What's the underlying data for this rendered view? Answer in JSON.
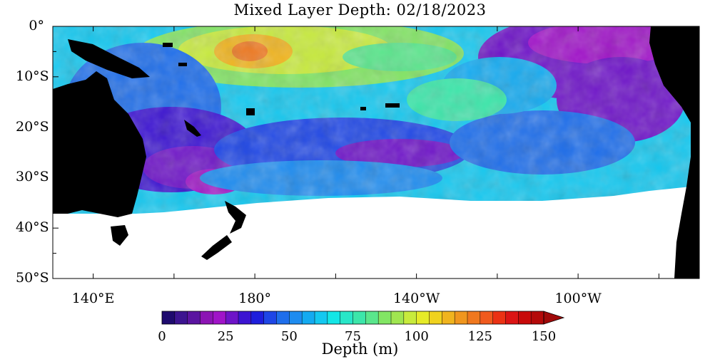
{
  "title": "Mixed Layer Depth: 02/18/2023",
  "map": {
    "lon_range": [
      130,
      290
    ],
    "lat_range": [
      -50,
      0
    ],
    "lat_ticks": [
      {
        "value": 0,
        "label": "0°"
      },
      {
        "value": -10,
        "label": "10°S"
      },
      {
        "value": -20,
        "label": "20°S"
      },
      {
        "value": -30,
        "label": "30°S"
      },
      {
        "value": -40,
        "label": "40°S"
      },
      {
        "value": -50,
        "label": "50°S"
      }
    ],
    "lon_ticks": [
      {
        "value": 140,
        "label": "140°E"
      },
      {
        "value": 180,
        "label": "180°"
      },
      {
        "value": 220,
        "label": "140°W"
      },
      {
        "value": 260,
        "label": "100°W"
      }
    ],
    "land_color": "#000000",
    "no_data_color": "#ffffff"
  },
  "colorbar": {
    "title": "Depth (m)",
    "min": 0,
    "max": 150,
    "ticks": [
      {
        "value": 0,
        "label": "0"
      },
      {
        "value": 25,
        "label": "25"
      },
      {
        "value": 50,
        "label": "50"
      },
      {
        "value": 75,
        "label": "75"
      },
      {
        "value": 100,
        "label": "100"
      },
      {
        "value": 125,
        "label": "125"
      },
      {
        "value": 150,
        "label": "150"
      }
    ],
    "colors": [
      "#1e0a6e",
      "#3c1490",
      "#5a14a0",
      "#8c14b4",
      "#a014c8",
      "#6e14c8",
      "#3c14d2",
      "#1e1edc",
      "#1e46e6",
      "#1e6eeb",
      "#1e8cf0",
      "#14aaf0",
      "#14c8f0",
      "#14e6e6",
      "#28e6c8",
      "#3ce6aa",
      "#5ae68c",
      "#82e664",
      "#a0e650",
      "#c8eb3c",
      "#e6eb28",
      "#f0d21e",
      "#f0b41e",
      "#f0961e",
      "#f0781e",
      "#f05a1e",
      "#eb3214",
      "#dc1414",
      "#c80a0a",
      "#b40a0a"
    ],
    "arrow_color": "#a00a0a"
  }
}
